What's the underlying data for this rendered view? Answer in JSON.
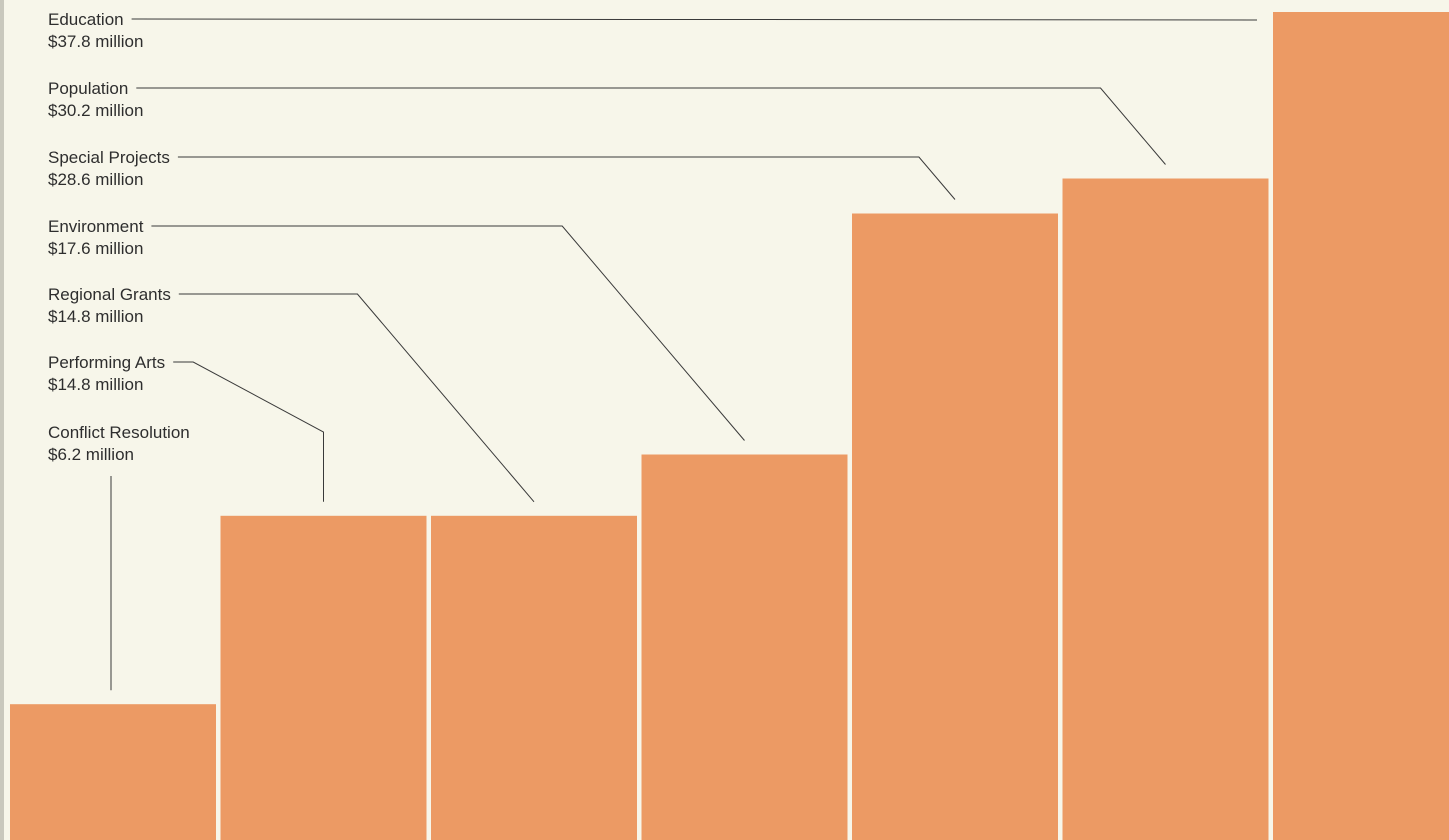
{
  "chart_data": {
    "type": "bar",
    "categories": [
      "Conflict Resolution",
      "Performing Arts",
      "Regional Grants",
      "Environment",
      "Special Projects",
      "Population",
      "Education"
    ],
    "values": [
      6.2,
      14.8,
      14.8,
      17.6,
      28.6,
      30.2,
      37.8
    ],
    "value_labels": [
      "$6.2 million",
      "$14.8 million",
      "$14.8 million",
      "$17.6 million",
      "$28.6 million",
      "$30.2 million",
      "$37.8 million"
    ],
    "ylim": [
      0,
      37.8
    ],
    "grid": false,
    "legend": "none",
    "colors": {
      "bar": "#ec9a64",
      "background": "#f7f6ea",
      "leader_line": "#3a3a3a",
      "text": "#2e2e2e"
    }
  }
}
